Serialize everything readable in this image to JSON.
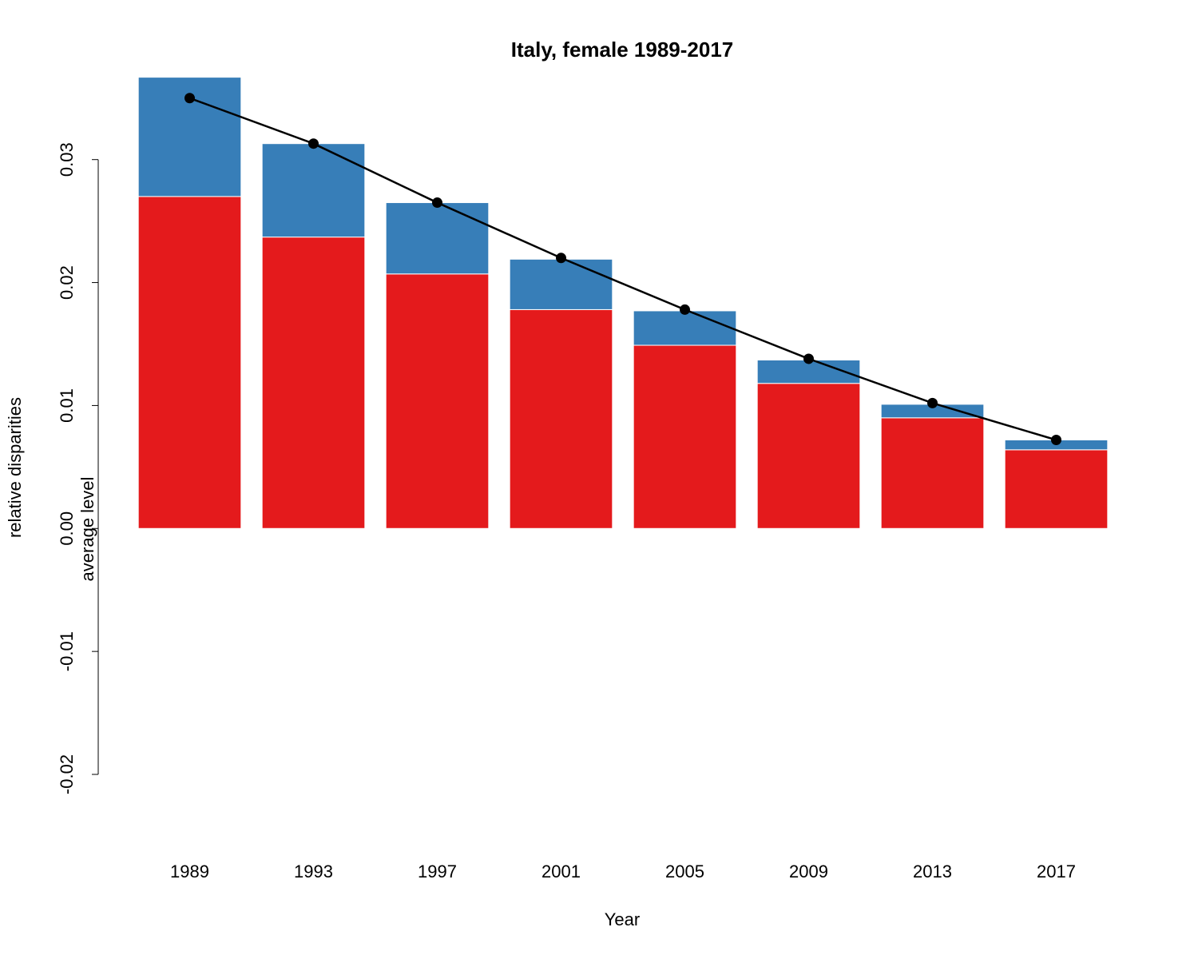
{
  "chart_data": {
    "type": "stacked-bar-line",
    "title": "Italy, female 1989-2017",
    "xlabel": "Year",
    "ylabel": "relative disparities",
    "ylabel2": "average level",
    "categories": [
      "1989",
      "1993",
      "1997",
      "2001",
      "2005",
      "2009",
      "2013",
      "2017"
    ],
    "series": [
      {
        "color": "#e41a1c",
        "values": [
          0.027,
          0.0237,
          0.0207,
          0.0178,
          0.0149,
          0.0118,
          0.009,
          0.0064
        ]
      },
      {
        "color": "#377eb8",
        "values": [
          0.0097,
          0.0076,
          0.0058,
          0.0041,
          0.0028,
          0.0019,
          0.0011,
          0.0008
        ]
      }
    ],
    "line": {
      "color": "#000000",
      "values": [
        0.035,
        0.0313,
        0.0265,
        0.022,
        0.0178,
        0.0138,
        0.0102,
        0.0072
      ]
    },
    "ylim": [
      -0.02,
      0.037
    ],
    "yticks": [
      -0.02,
      -0.01,
      {
        "value": 0,
        "label": "0.00"
      },
      0.01,
      0.02,
      0.03
    ],
    "grid": false
  }
}
